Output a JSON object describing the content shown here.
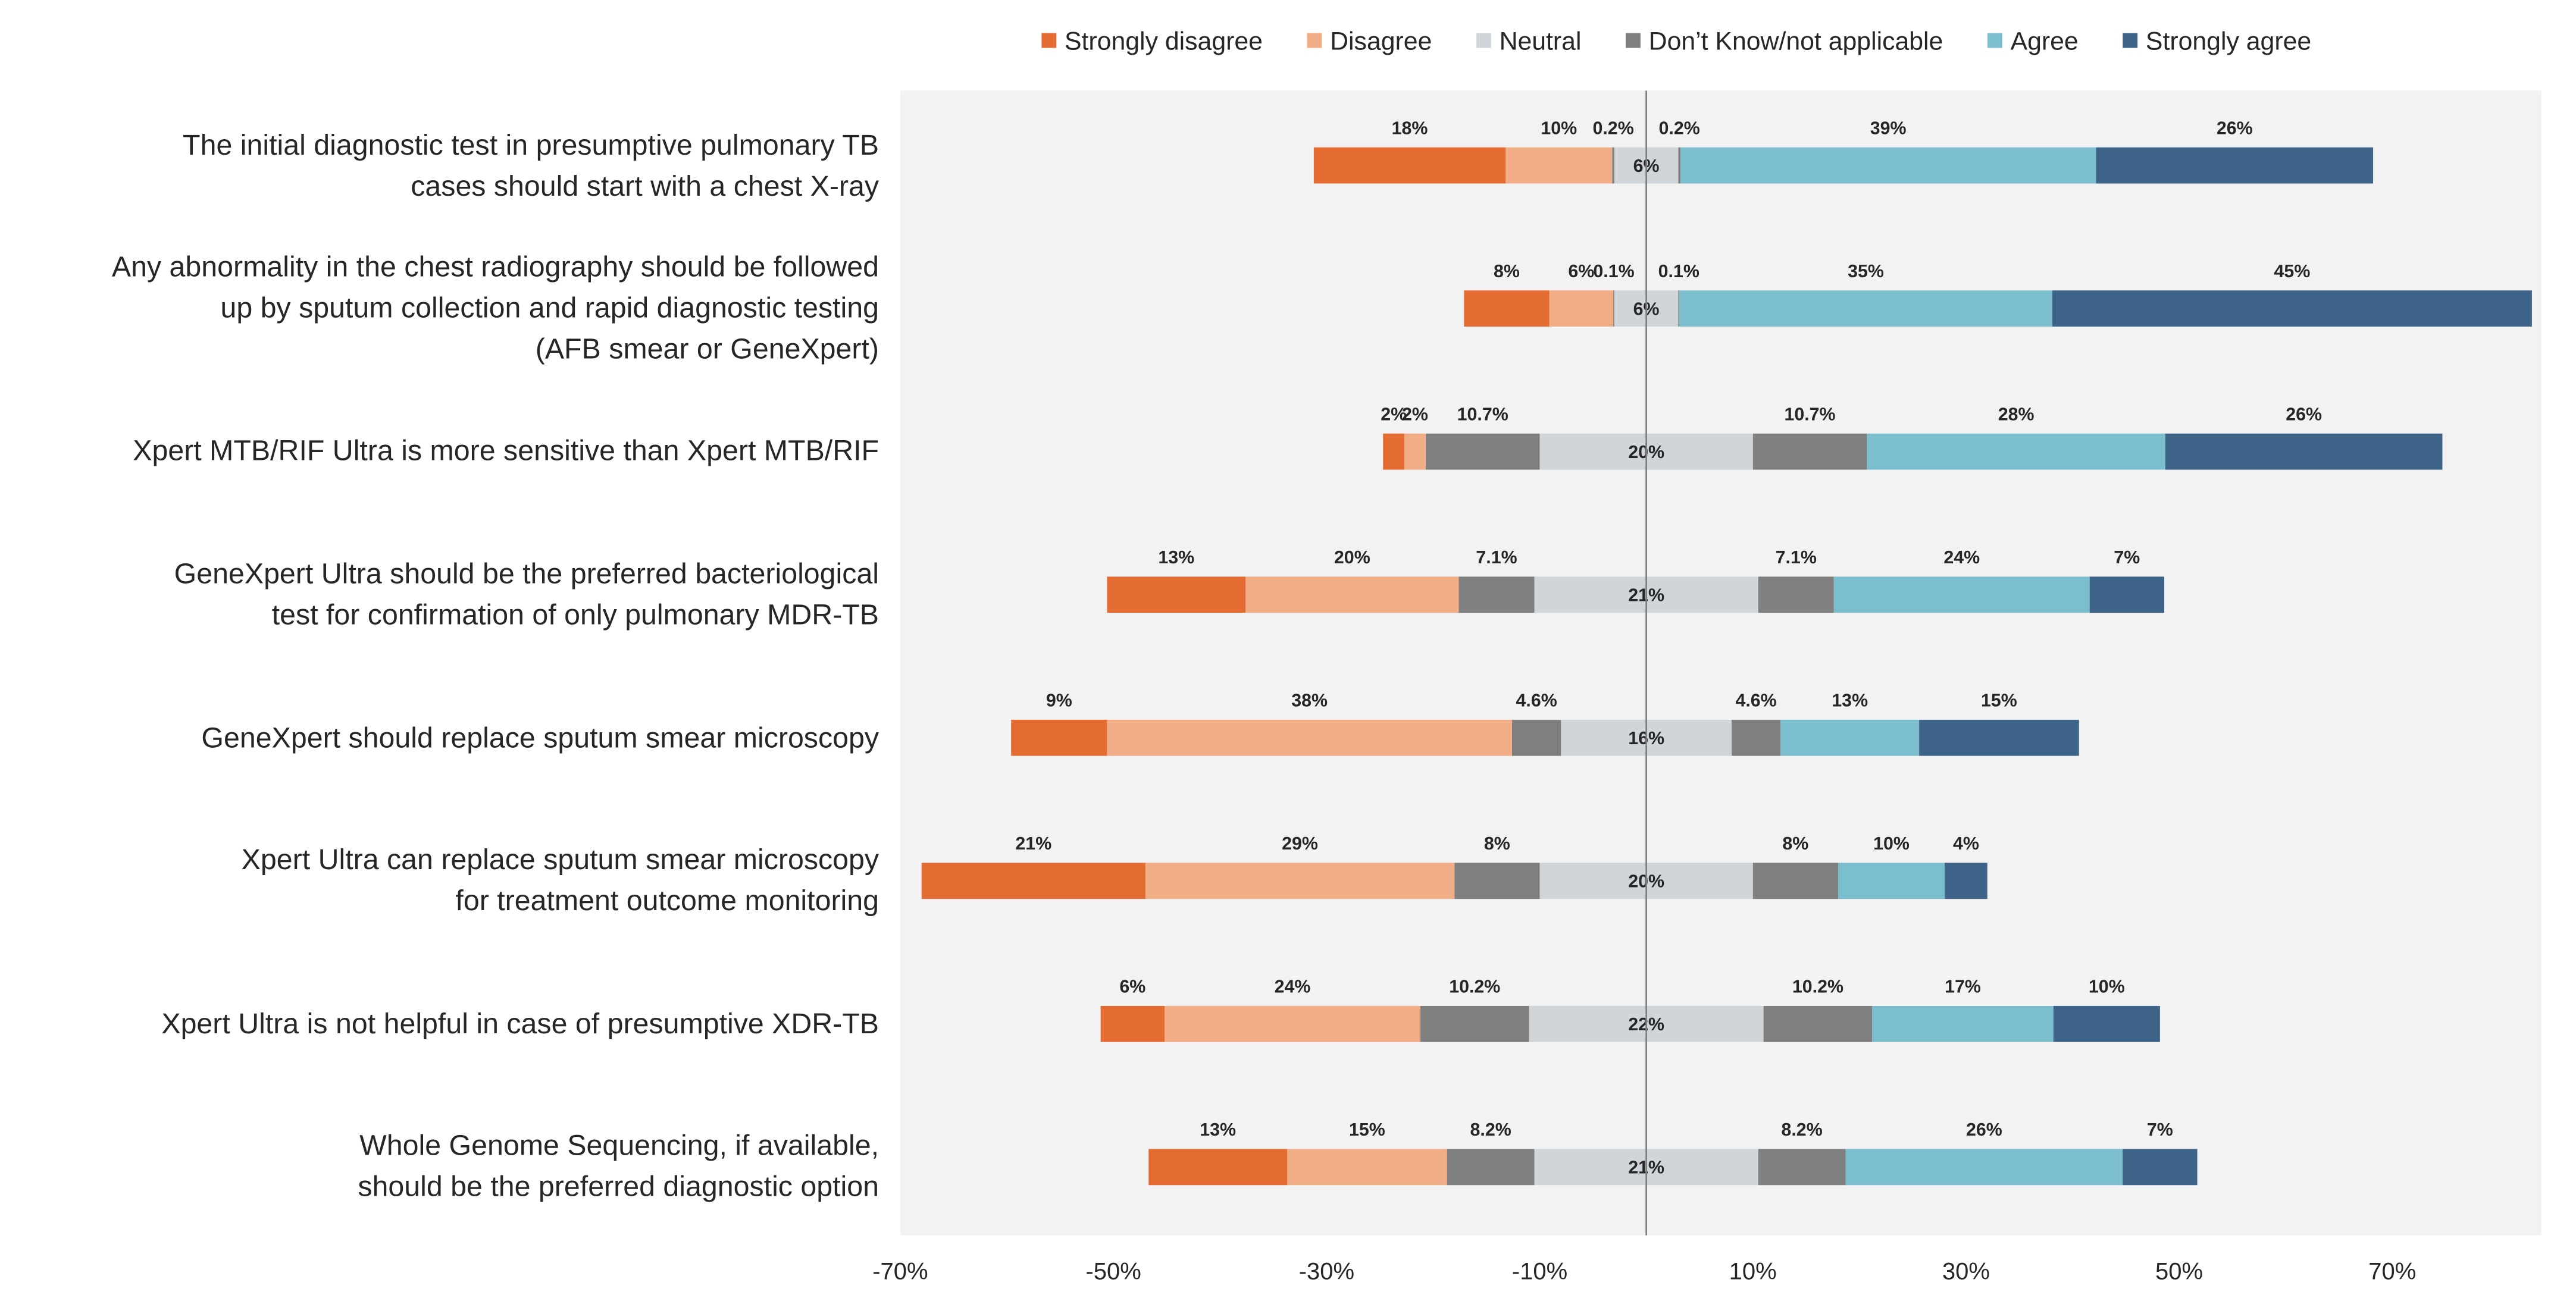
{
  "chart_data": {
    "type": "diverging_bar",
    "categories": [
      "The initial diagnostic test in  presumptive pulmonary TB\ncases should start with a chest X-ray",
      "Any abnormality in the chest radiography should be followed\nup by sputum collection and rapid diagnostic testing\n(AFB smear or GeneXpert)",
      "Xpert MTB/RIF Ultra is more sensitive than Xpert MTB/RIF",
      "GeneXpert Ultra should be the preferred bacteriological\ntest for confirmation of only pulmonary MDR-TB",
      "GeneXpert  should replace sputum smear microscopy",
      "Xpert Ultra can replace sputum smear microscopy\nfor treatment outcome monitoring",
      "Xpert Ultra is not helpful in case of presumptive XDR-TB",
      "Whole Genome Sequencing, if available,\nshould be the preferred diagnostic option"
    ],
    "series": [
      {
        "name": "Strongly disagree",
        "color": "#e46c32",
        "values": [
          18,
          8,
          2,
          13,
          9,
          21,
          6,
          13
        ],
        "value_labels": [
          "18%",
          "8%",
          "2%",
          "13%",
          "9%",
          "21%",
          "6%",
          "13%"
        ]
      },
      {
        "name": "Disagree",
        "color": "#f0ad86",
        "values": [
          10,
          6,
          2,
          20,
          38,
          29,
          24,
          15
        ],
        "value_labels": [
          "10%",
          "6%",
          "2%",
          "20%",
          "38%",
          "29%",
          "24%",
          "15%"
        ]
      },
      {
        "name": "Neutral",
        "color": "#d0d5d9",
        "values": [
          6,
          6,
          20,
          21,
          16,
          20,
          22,
          21
        ],
        "value_labels": [
          "6%",
          "6%",
          "20%",
          "21%",
          "16%",
          "20%",
          "22%",
          "21%"
        ]
      },
      {
        "name": "Don’t Know/not applicable",
        "color": "#7f7f7f",
        "values": [
          0.2,
          0.1,
          10.7,
          7.1,
          4.6,
          8,
          10.2,
          8.2
        ],
        "value_labels": [
          "0.2%",
          "0.1%",
          "10.7%",
          "7.1%",
          "4.6%",
          "8%",
          "10.2%",
          "8.2%"
        ]
      },
      {
        "name": "Agree",
        "color": "#7bbfcf",
        "values": [
          39,
          35,
          28,
          24,
          13,
          10,
          17,
          26
        ],
        "value_labels": [
          "39%",
          "35%",
          "28%",
          "24%",
          "13%",
          "10%",
          "17%",
          "26%"
        ]
      },
      {
        "name": "Strongly agree",
        "color": "#3e6389",
        "values": [
          26,
          45,
          26,
          7,
          15,
          4,
          10,
          7
        ],
        "value_labels": [
          "26%",
          "45%",
          "26%",
          "7%",
          "15%",
          "4%",
          "10%",
          "7%"
        ]
      }
    ],
    "xlim": [
      -70,
      84
    ],
    "xticks": [
      {
        "value": -70,
        "label": "-70%"
      },
      {
        "value": -50,
        "label": "-50%"
      },
      {
        "value": -30,
        "label": "-30%"
      },
      {
        "value": -10,
        "label": "-10%"
      },
      {
        "value": 10,
        "label": "10%"
      },
      {
        "value": 30,
        "label": "30%"
      },
      {
        "value": 50,
        "label": "50%"
      },
      {
        "value": 70,
        "label": "70%"
      }
    ],
    "legend": "top"
  }
}
